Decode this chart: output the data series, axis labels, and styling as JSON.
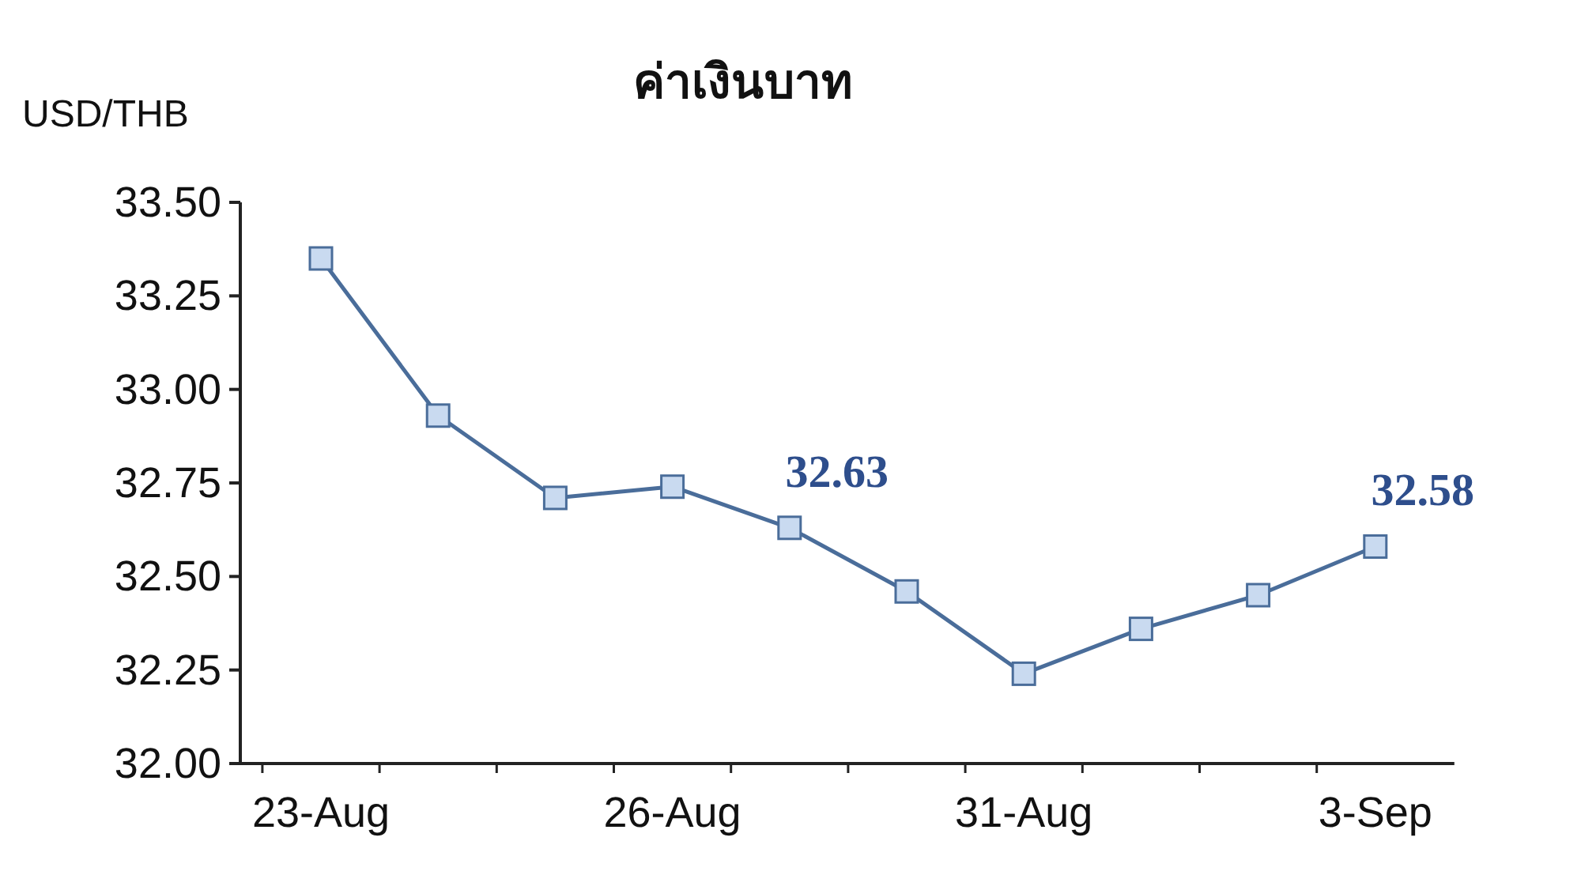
{
  "chart_data": {
    "type": "line",
    "title": "ค่าเงินบาท",
    "ylabel": "USD/THB",
    "categories": [
      "23-Aug",
      null,
      null,
      "26-Aug",
      null,
      null,
      "31-Aug",
      null,
      null,
      "3-Sep"
    ],
    "series": [
      {
        "color": "#4a6d9a",
        "values": [
          33.35,
          32.93,
          32.71,
          32.74,
          32.63,
          32.46,
          32.24,
          32.36,
          32.45,
          32.58
        ],
        "value_labels": [
          null,
          null,
          null,
          null,
          "32.63",
          null,
          null,
          null,
          null,
          "32.58"
        ]
      }
    ],
    "ylim": [
      32.0,
      33.5
    ],
    "yticks": [
      {
        "value": 32.0,
        "label": "32.00"
      },
      {
        "value": 32.25,
        "label": "32.25"
      },
      {
        "value": 32.5,
        "label": "32.50"
      },
      {
        "value": 32.75,
        "label": "32.75"
      },
      {
        "value": 33.0,
        "label": "33.00"
      },
      {
        "value": 33.25,
        "label": "33.25"
      },
      {
        "value": 33.5,
        "label": "33.50"
      }
    ],
    "marker": "square",
    "line_style": "solid"
  }
}
